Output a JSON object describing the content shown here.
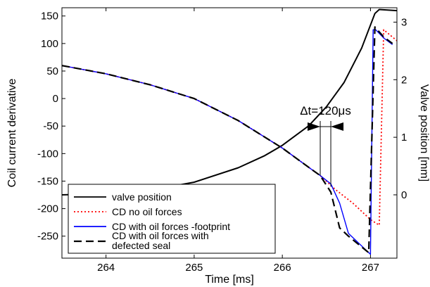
{
  "chart_data": {
    "type": "line",
    "xlabel": "Time [ms]",
    "ylabel_left": "Coil current derivative",
    "ylabel_right": "Valve position [mm]",
    "xlim": [
      263.5,
      267.3
    ],
    "ylim_left": [
      -290,
      165
    ],
    "ylim_right": [
      -1.1,
      3.25
    ],
    "x_ticks": [
      264,
      265,
      266,
      267
    ],
    "y_ticks_left": [
      150,
      100,
      50,
      0,
      -50,
      -100,
      -150,
      -200,
      -250
    ],
    "y_ticks_right": [
      3,
      2,
      1,
      0
    ],
    "annotation": {
      "text": "Δt=120μs",
      "from_x": 266.43,
      "to_x": 266.55
    },
    "legend_position": "bottom-left",
    "series": [
      {
        "name": "valve position",
        "axis": "right",
        "color": "#000000",
        "dash": "solid",
        "x": [
          263.5,
          264.0,
          264.5,
          265.0,
          265.5,
          265.8,
          266.0,
          266.3,
          266.5,
          266.7,
          266.9,
          267.05,
          267.1,
          267.3
        ],
        "y": [
          0.0,
          0.02,
          0.08,
          0.22,
          0.47,
          0.68,
          0.86,
          1.2,
          1.53,
          1.95,
          2.55,
          3.15,
          3.22,
          3.2
        ]
      },
      {
        "name": "CD no oil forces",
        "axis": "left",
        "color": "#ff0000",
        "dash": "dotted",
        "x": [
          263.5,
          264.0,
          264.5,
          265.0,
          265.5,
          266.0,
          266.3,
          266.43,
          266.6,
          266.8,
          267.0,
          267.1,
          267.15,
          267.3
        ],
        "y": [
          60,
          45,
          25,
          0,
          -40,
          -90,
          -125,
          -140,
          -165,
          -190,
          -220,
          -230,
          125,
          105
        ]
      },
      {
        "name": "CD with oil forces -footprint",
        "axis": "left",
        "color": "#0000ff",
        "dash": "solid",
        "x": [
          263.5,
          264.0,
          264.5,
          265.0,
          265.5,
          266.0,
          266.3,
          266.43,
          266.55,
          266.65,
          266.75,
          267.0,
          267.03,
          267.06,
          267.15,
          267.25
        ],
        "y": [
          60,
          45,
          25,
          0,
          -40,
          -90,
          -125,
          -140,
          -155,
          -190,
          -245,
          -283,
          125,
          125,
          110,
          98
        ]
      },
      {
        "name": "CD with oil forces with defected seal",
        "axis": "left",
        "color": "#000000",
        "dash": "dashed",
        "x": [
          263.5,
          264.0,
          264.5,
          265.0,
          265.5,
          266.0,
          266.3,
          266.43,
          266.55,
          266.65,
          266.75,
          266.98,
          267.05,
          267.15,
          267.25
        ],
        "y": [
          60,
          45,
          25,
          0,
          -40,
          -90,
          -125,
          -140,
          -170,
          -235,
          -250,
          -280,
          130,
          112,
          100
        ]
      }
    ]
  }
}
